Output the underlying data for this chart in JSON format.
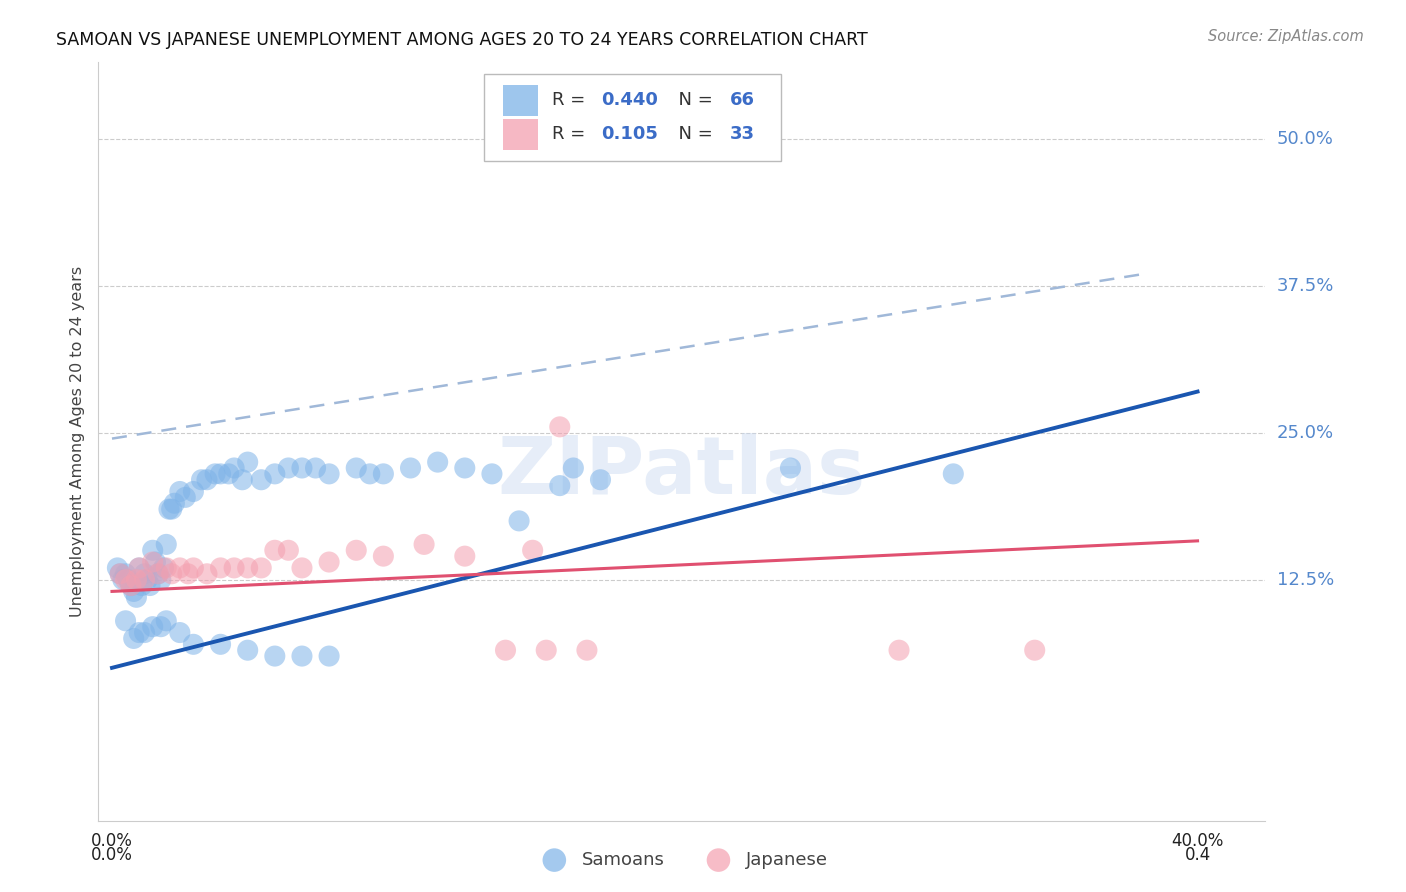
{
  "title": "SAMOAN VS JAPANESE UNEMPLOYMENT AMONG AGES 20 TO 24 YEARS CORRELATION CHART",
  "source": "Source: ZipAtlas.com",
  "ylabel": "Unemployment Among Ages 20 to 24 years",
  "ytick_labels": [
    "50.0%",
    "37.5%",
    "25.0%",
    "12.5%"
  ],
  "ytick_values": [
    0.5,
    0.375,
    0.25,
    0.125
  ],
  "ylim": [
    -0.08,
    0.565
  ],
  "xlim": [
    -0.005,
    0.425
  ],
  "xtick_left_label": "0.0%",
  "xtick_right_label": "40.0%",
  "xtick_left_val": 0.0,
  "xtick_right_val": 0.4,
  "samoans_color": "#7eb3e8",
  "japanese_color": "#f4a0b0",
  "trend_blue_color": "#1a56b0",
  "trend_pink_color": "#e05070",
  "trend_dashed_color": "#a0b8d8",
  "legend_r1_val": "0.440",
  "legend_n1_val": "66",
  "legend_r2_val": "0.105",
  "legend_n2_val": "33",
  "blue_trend": [
    0.0,
    0.05,
    0.4,
    0.285
  ],
  "pink_trend": [
    0.0,
    0.115,
    0.4,
    0.158
  ],
  "dashed_trend": [
    0.0,
    0.245,
    0.38,
    0.385
  ],
  "samoans_x": [
    0.002,
    0.003,
    0.004,
    0.005,
    0.006,
    0.007,
    0.008,
    0.009,
    0.01,
    0.011,
    0.012,
    0.013,
    0.014,
    0.015,
    0.016,
    0.017,
    0.018,
    0.019,
    0.02,
    0.021,
    0.022,
    0.023,
    0.025,
    0.027,
    0.03,
    0.033,
    0.035,
    0.038,
    0.04,
    0.043,
    0.045,
    0.048,
    0.05,
    0.055,
    0.06,
    0.065,
    0.07,
    0.075,
    0.08,
    0.09,
    0.095,
    0.1,
    0.11,
    0.12,
    0.13,
    0.14,
    0.15,
    0.165,
    0.17,
    0.18,
    0.25,
    0.31,
    0.005,
    0.008,
    0.01,
    0.012,
    0.015,
    0.018,
    0.02,
    0.025,
    0.03,
    0.04,
    0.05,
    0.06,
    0.07,
    0.08
  ],
  "samoans_y": [
    0.135,
    0.13,
    0.125,
    0.13,
    0.125,
    0.12,
    0.115,
    0.11,
    0.135,
    0.12,
    0.13,
    0.125,
    0.12,
    0.15,
    0.14,
    0.13,
    0.125,
    0.135,
    0.155,
    0.185,
    0.185,
    0.19,
    0.2,
    0.195,
    0.2,
    0.21,
    0.21,
    0.215,
    0.215,
    0.215,
    0.22,
    0.21,
    0.225,
    0.21,
    0.215,
    0.22,
    0.22,
    0.22,
    0.215,
    0.22,
    0.215,
    0.215,
    0.22,
    0.225,
    0.22,
    0.215,
    0.175,
    0.205,
    0.22,
    0.21,
    0.22,
    0.215,
    0.09,
    0.075,
    0.08,
    0.08,
    0.085,
    0.085,
    0.09,
    0.08,
    0.07,
    0.07,
    0.065,
    0.06,
    0.06,
    0.06
  ],
  "japanese_x": [
    0.003,
    0.005,
    0.007,
    0.009,
    0.01,
    0.012,
    0.015,
    0.017,
    0.02,
    0.022,
    0.025,
    0.028,
    0.03,
    0.035,
    0.04,
    0.045,
    0.05,
    0.055,
    0.06,
    0.065,
    0.07,
    0.08,
    0.09,
    0.1,
    0.115,
    0.13,
    0.145,
    0.155,
    0.16,
    0.175,
    0.29,
    0.165,
    0.34
  ],
  "japanese_y": [
    0.13,
    0.125,
    0.12,
    0.125,
    0.135,
    0.125,
    0.14,
    0.13,
    0.135,
    0.13,
    0.135,
    0.13,
    0.135,
    0.13,
    0.135,
    0.135,
    0.135,
    0.135,
    0.15,
    0.15,
    0.135,
    0.14,
    0.15,
    0.145,
    0.155,
    0.145,
    0.065,
    0.15,
    0.065,
    0.065,
    0.065,
    0.255,
    0.065
  ],
  "watermark_text": "ZIPatlas"
}
